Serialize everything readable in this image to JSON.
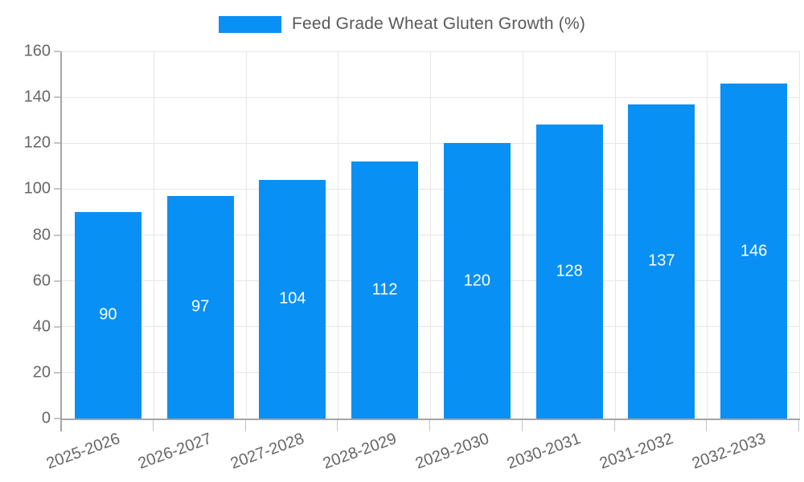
{
  "legend": {
    "label": "Feed Grade Wheat Gluten Growth (%)"
  },
  "chart_data": {
    "type": "bar",
    "title": "Feed Grade Wheat Gluten Growth (%)",
    "categories": [
      "2025-2026",
      "2026-2027",
      "2027-2028",
      "2028-2029",
      "2029-2030",
      "2030-2031",
      "2031-2032",
      "2032-2033"
    ],
    "values": [
      90,
      97,
      104,
      112,
      120,
      128,
      137,
      146
    ],
    "value_labels": [
      "90",
      "97",
      "104",
      "112",
      "120",
      "128",
      "137",
      "146"
    ],
    "xlabel": "",
    "ylabel": "",
    "ylim": [
      0,
      160
    ],
    "yticks": [
      0,
      20,
      40,
      60,
      80,
      100,
      120,
      140,
      160
    ],
    "grid": true,
    "legend_position": "top-center",
    "x_label_rotation_deg": -20,
    "colors": {
      "bar": "#0990f5",
      "value_text": "#ffffff",
      "axis_line": "#a5a5a5",
      "gridline": "#e6e6e6",
      "tick_mark": "#c4c4c4",
      "tick_text": "#666666",
      "legend_text": "#595959",
      "background": "#ffffff"
    }
  }
}
